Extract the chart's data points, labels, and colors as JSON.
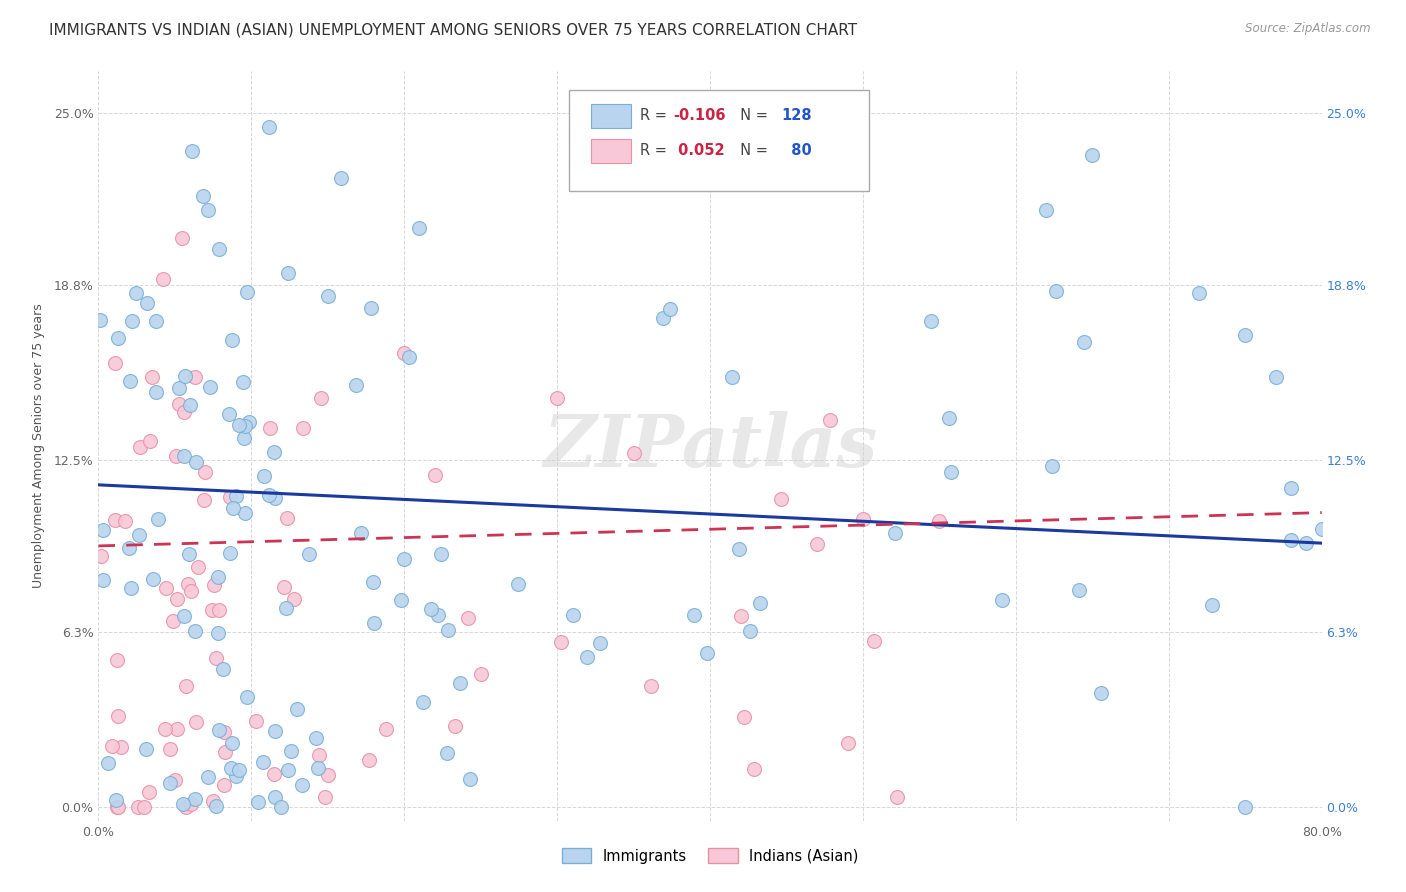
{
  "title": "IMMIGRANTS VS INDIAN (ASIAN) UNEMPLOYMENT AMONG SENIORS OVER 75 YEARS CORRELATION CHART",
  "source": "Source: ZipAtlas.com",
  "ylabel": "Unemployment Among Seniors over 75 years",
  "xlim": [
    0.0,
    0.8
  ],
  "ylim": [
    -0.005,
    0.265
  ],
  "yticks": [
    0.0,
    0.063,
    0.125,
    0.188,
    0.25
  ],
  "ytick_labels": [
    "0.0%",
    "6.3%",
    "12.5%",
    "18.8%",
    "25.0%"
  ],
  "xticks": [
    0.0,
    0.1,
    0.2,
    0.3,
    0.4,
    0.5,
    0.6,
    0.7,
    0.8
  ],
  "xtick_labels": [
    "0.0%",
    "",
    "",
    "",
    "",
    "",
    "",
    "",
    "80.0%"
  ],
  "immigrants_color": "#b8d4ee",
  "immigrants_edge": "#7aafd4",
  "indians_color": "#f8c8d8",
  "indians_edge": "#e890a8",
  "trend_immigrants_color": "#1a3a9f",
  "trend_indians_color": "#cc3355",
  "background_color": "#ffffff",
  "grid_color": "#d8d8d8",
  "title_fontsize": 11,
  "axis_label_fontsize": 9,
  "tick_fontsize": 9,
  "marker_size": 100,
  "right_tick_color": "#3a80d0",
  "watermark": "ZIPatlas"
}
